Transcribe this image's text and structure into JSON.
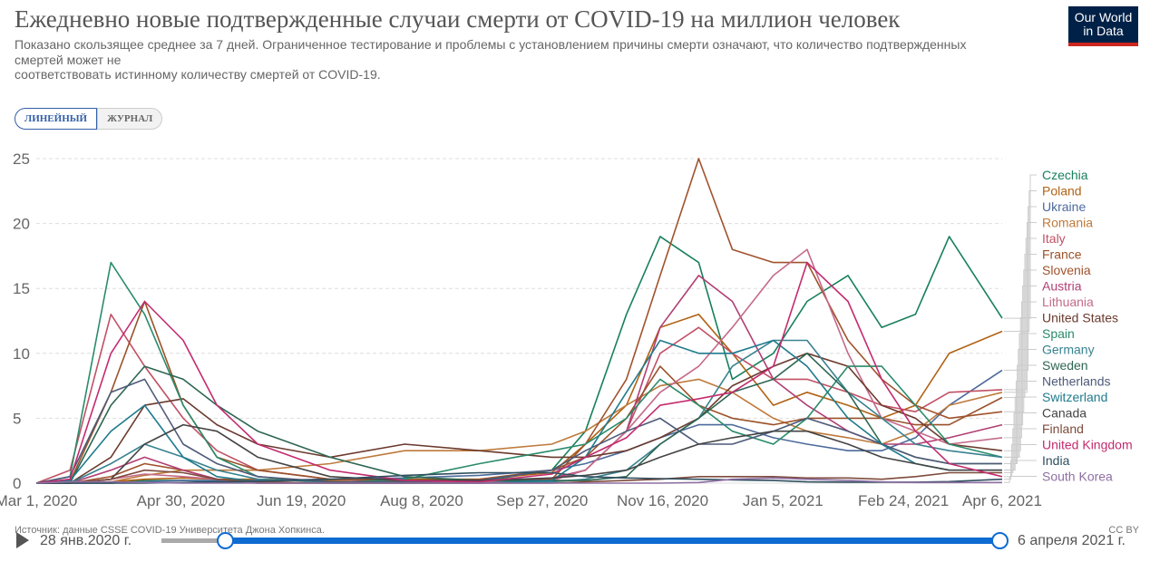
{
  "header": {
    "title": "Ежедневно новые подтвержденные случаи смерти от COVID-19 на миллион человек",
    "subtitle_lines": [
      "Показано скользящее среднее за 7 дней. Ограниченное тестирование и проблемы с установлением причины смерти означают, что количество подтвержденных смертей может не",
      "соответствовать истинному количеству смертей от COVID-19."
    ],
    "logo": "Our World in Data"
  },
  "tabs": [
    {
      "label": "ЛИНЕЙНЫЙ",
      "active": true
    },
    {
      "label": "ЖУРНАЛ",
      "active": false
    }
  ],
  "footer": {
    "source": "Источник: данные CSSE COVID-19 Университета Джона Хопкинса.",
    "license": "CC BY"
  },
  "timeline": {
    "start_label": "28 янв.2020 г.",
    "end_label": "6 апреля 2021 г.",
    "play_icon": "play-icon"
  },
  "chart_data": {
    "type": "line",
    "grid": true,
    "legend": "right",
    "ylim": [
      0,
      25
    ],
    "y_ticks": [
      "0",
      "5",
      "10",
      "15",
      "20",
      "25"
    ],
    "x_ticks": [
      "Mar 1, 2020",
      "Apr 30, 2020",
      "Jun 19, 2020",
      "Aug 8, 2020",
      "Sep 27, 2020",
      "Nov 16, 2020",
      "Jan 5, 2021",
      "Feb 24, 2021",
      "Apr 6, 2021"
    ],
    "x": [
      "2020-03-01",
      "2020-03-15",
      "2020-04-01",
      "2020-04-15",
      "2020-05-01",
      "2020-05-15",
      "2020-06-01",
      "2020-07-01",
      "2020-08-01",
      "2020-09-01",
      "2020-10-01",
      "2020-10-15",
      "2020-11-01",
      "2020-11-15",
      "2020-12-01",
      "2020-12-15",
      "2021-01-01",
      "2021-01-15",
      "2021-02-01",
      "2021-02-15",
      "2021-03-01",
      "2021-03-15",
      "2021-04-06"
    ],
    "series": [
      {
        "name": "Czechia",
        "color": "#18805b",
        "values": [
          0,
          0,
          0,
          0.2,
          0.2,
          0.1,
          0,
          0,
          0,
          0.1,
          1,
          4,
          13,
          19,
          17,
          8,
          10,
          14,
          16,
          12,
          13,
          19,
          12.7
        ]
      },
      {
        "name": "Poland",
        "color": "#b16214",
        "values": [
          0,
          0,
          0.1,
          0.3,
          0.4,
          0.3,
          0.3,
          0.2,
          0.3,
          0.3,
          0.8,
          3,
          6,
          12,
          13,
          10,
          6,
          7,
          6,
          5,
          6,
          10,
          11.7
        ]
      },
      {
        "name": "Ukraine",
        "color": "#4c6a9c",
        "values": [
          0,
          0,
          0,
          0.1,
          0.2,
          0.2,
          0.2,
          0.3,
          0.4,
          0.6,
          1,
          1.5,
          2.5,
          3.5,
          4.5,
          4.5,
          3.5,
          3,
          2.5,
          2.5,
          3.5,
          6,
          8.7
        ]
      },
      {
        "name": "Romania",
        "color": "#be7a3c",
        "values": [
          0,
          0,
          0.1,
          0.6,
          1,
          1,
          1,
          1.5,
          2.5,
          2.5,
          3,
          4,
          6,
          7.5,
          8,
          7,
          5,
          4,
          3.5,
          3,
          4,
          6,
          7
        ]
      },
      {
        "name": "Italy",
        "color": "#c15065",
        "values": [
          0,
          1,
          13,
          9,
          5,
          2.5,
          1,
          0.3,
          0.1,
          0.1,
          0.3,
          1,
          4,
          10,
          12,
          10,
          8,
          8,
          7,
          6,
          5.5,
          7,
          7.2
        ]
      },
      {
        "name": "France",
        "color": "#9a5129",
        "values": [
          0,
          0.1,
          7,
          14,
          6,
          2,
          1,
          0.3,
          0.2,
          0.3,
          1,
          2,
          5,
          9,
          6,
          5,
          4.5,
          5,
          5,
          5,
          4.5,
          4.5,
          6.6
        ]
      },
      {
        "name": "Slovenia",
        "color": "#a0522d",
        "values": [
          0,
          0,
          0.5,
          1.5,
          1,
          0.3,
          0,
          0,
          0,
          0.2,
          0.3,
          3,
          8,
          16,
          25,
          18,
          17,
          17,
          11,
          8,
          6,
          5,
          5.5
        ]
      },
      {
        "name": "Austria",
        "color": "#b13f74",
        "values": [
          0,
          0,
          1,
          2,
          1,
          0.3,
          0.1,
          0,
          0.1,
          0.1,
          0.4,
          1,
          4,
          12,
          16,
          14,
          8,
          6,
          4,
          3,
          3,
          3.5,
          4.5
        ]
      },
      {
        "name": "Lithuania",
        "color": "#c46a8a",
        "values": [
          0,
          0,
          0.3,
          0.7,
          0.5,
          0.3,
          0,
          0,
          0,
          0.1,
          0.2,
          1,
          4,
          7,
          9,
          12,
          16,
          18,
          10,
          5,
          4,
          3,
          3.5
        ]
      },
      {
        "name": "United States",
        "color": "#6b3a2e",
        "values": [
          0,
          0,
          2,
          6,
          6.5,
          4.5,
          3,
          2,
          3,
          2.5,
          2,
          2,
          2.5,
          3.5,
          5,
          7.5,
          9,
          10,
          9,
          6,
          5,
          3,
          2.5
        ]
      },
      {
        "name": "Spain",
        "color": "#2a8b6b",
        "values": [
          0,
          0.5,
          17,
          13,
          6,
          2,
          0.5,
          0,
          0.3,
          1.5,
          2.5,
          3,
          5,
          8,
          6,
          4,
          3,
          5,
          9,
          9,
          6,
          3,
          2
        ]
      },
      {
        "name": "Germany",
        "color": "#38828f",
        "values": [
          0,
          0,
          1.5,
          3,
          2,
          1,
          0.3,
          0.1,
          0,
          0,
          0.1,
          0.3,
          1,
          3,
          5,
          9,
          11,
          11,
          7,
          5,
          3,
          2.5,
          2
        ]
      },
      {
        "name": "Sweden",
        "color": "#2d6652",
        "values": [
          0,
          0,
          6,
          9,
          8,
          6,
          4,
          2,
          0.5,
          0.2,
          0.2,
          0.2,
          0.5,
          3,
          5,
          7,
          8,
          10,
          7,
          3,
          2,
          1.5,
          1.5
        ]
      },
      {
        "name": "Netherlands",
        "color": "#4e5a78",
        "values": [
          0,
          0.5,
          7,
          8,
          3,
          1.5,
          0.5,
          0.1,
          0.1,
          0.2,
          1,
          2.5,
          4,
          5,
          3,
          3,
          4,
          5,
          4,
          3,
          2,
          1.5,
          1.5
        ]
      },
      {
        "name": "Switzerland",
        "color": "#1f7a8c",
        "values": [
          0,
          0.2,
          4,
          6,
          2,
          0.5,
          0.1,
          0,
          0,
          0,
          0.2,
          2,
          7,
          11,
          10,
          10,
          11,
          9,
          5,
          3,
          1.5,
          1,
          1
        ]
      },
      {
        "name": "Canada",
        "color": "#444444",
        "values": [
          0,
          0,
          0.3,
          3,
          4.5,
          4,
          2,
          0.5,
          0.2,
          0.2,
          0.4,
          0.6,
          1,
          2,
          3,
          3.5,
          4,
          4,
          3,
          2,
          1.5,
          1,
          1
        ]
      },
      {
        "name": "Finland",
        "color": "#7e4b3c",
        "values": [
          0,
          0,
          0.3,
          1,
          0.8,
          0.3,
          0.1,
          0,
          0,
          0,
          0,
          0.1,
          0.2,
          0.3,
          0.5,
          0.5,
          0.5,
          0.4,
          0.4,
          0.3,
          0.5,
          0.8,
          0.8
        ]
      },
      {
        "name": "United Kingdom",
        "color": "#c32b6f",
        "values": [
          0,
          0.3,
          10,
          14,
          11,
          6,
          3,
          1,
          0.2,
          0.1,
          0.7,
          2,
          3.5,
          6,
          6.5,
          7,
          9,
          17,
          14,
          8,
          4,
          1.5,
          0.5
        ]
      },
      {
        "name": "India",
        "color": "#2f4f5f",
        "values": [
          0,
          0,
          0,
          0,
          0.05,
          0.1,
          0.15,
          0.3,
          0.6,
          0.8,
          0.8,
          0.5,
          0.4,
          0.35,
          0.3,
          0.25,
          0.2,
          0.1,
          0.08,
          0.08,
          0.08,
          0.12,
          0.3
        ]
      },
      {
        "name": "South Korea",
        "color": "#8e6fa3",
        "values": [
          0,
          0.1,
          0.1,
          0.05,
          0,
          0,
          0,
          0,
          0,
          0,
          0,
          0,
          0,
          0,
          0.05,
          0.3,
          0.4,
          0.3,
          0.2,
          0.1,
          0.05,
          0.05,
          0.05
        ]
      }
    ]
  }
}
